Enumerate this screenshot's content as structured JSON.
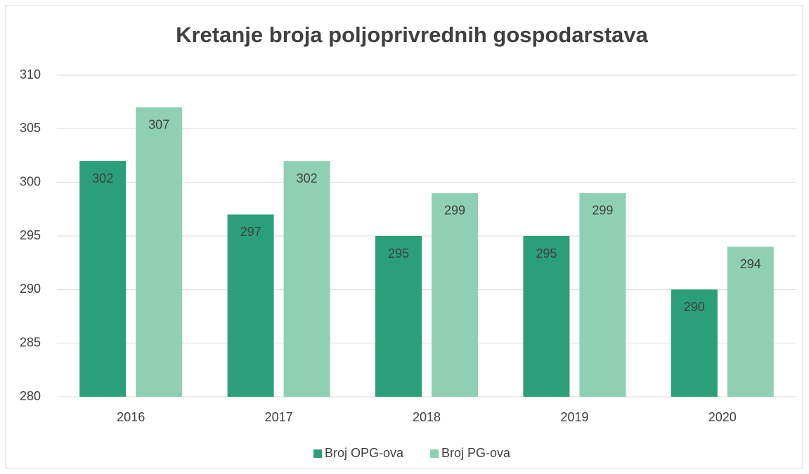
{
  "chart_data": {
    "type": "bar",
    "title": "Kretanje broja poljoprivrednih gospodarstava",
    "categories": [
      "2016",
      "2017",
      "2018",
      "2019",
      "2020"
    ],
    "series": [
      {
        "name": "Broj OPG-ova",
        "color": "#2b9f7a",
        "values": [
          302,
          297,
          295,
          295,
          290
        ]
      },
      {
        "name": "Broj PG-ova",
        "color": "#8fd0b5",
        "values": [
          307,
          302,
          299,
          299,
          294
        ]
      }
    ],
    "ylim": [
      280,
      310
    ],
    "yticks": [
      280,
      285,
      290,
      295,
      300,
      305,
      310
    ],
    "grid": true,
    "legend": "bottom"
  }
}
